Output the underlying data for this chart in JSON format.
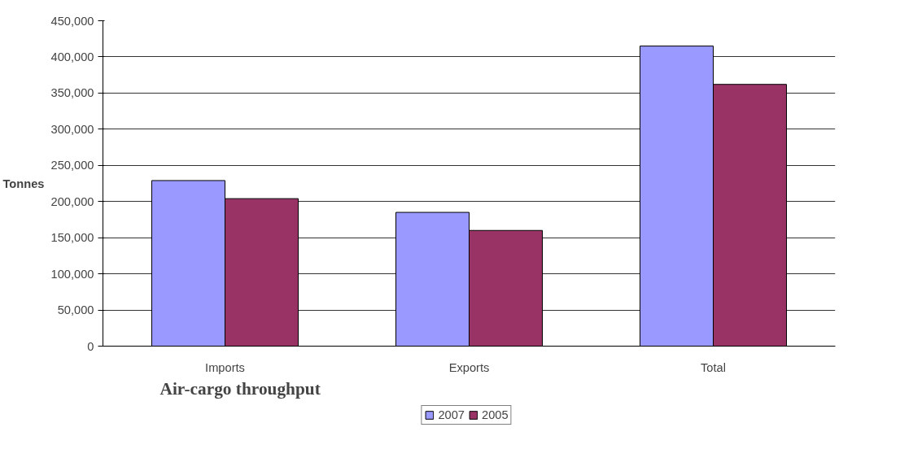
{
  "chart_data": {
    "type": "bar",
    "title": "Air-cargo throughput",
    "ylabel": "Tonnes",
    "categories": [
      "Imports",
      "Exports",
      "Total"
    ],
    "series": [
      {
        "name": "2007",
        "color": "#9999ff",
        "values": [
          229000,
          185000,
          415000
        ]
      },
      {
        "name": "2005",
        "color": "#993366",
        "values": [
          204000,
          160000,
          362000
        ]
      }
    ],
    "ylim": [
      0,
      450000
    ],
    "yticks": [
      {
        "value": 0,
        "label": "0"
      },
      {
        "value": 50000,
        "label": "50,000"
      },
      {
        "value": 100000,
        "label": "100,000"
      },
      {
        "value": 150000,
        "label": "150,000"
      },
      {
        "value": 200000,
        "label": "200,000"
      },
      {
        "value": 250000,
        "label": "250,000"
      },
      {
        "value": 300000,
        "label": "300,000"
      },
      {
        "value": 350000,
        "label": "350,000"
      },
      {
        "value": 400000,
        "label": "400,000"
      },
      {
        "value": 450000,
        "label": "450,000"
      }
    ],
    "grid": "y",
    "legend": "bottom"
  }
}
